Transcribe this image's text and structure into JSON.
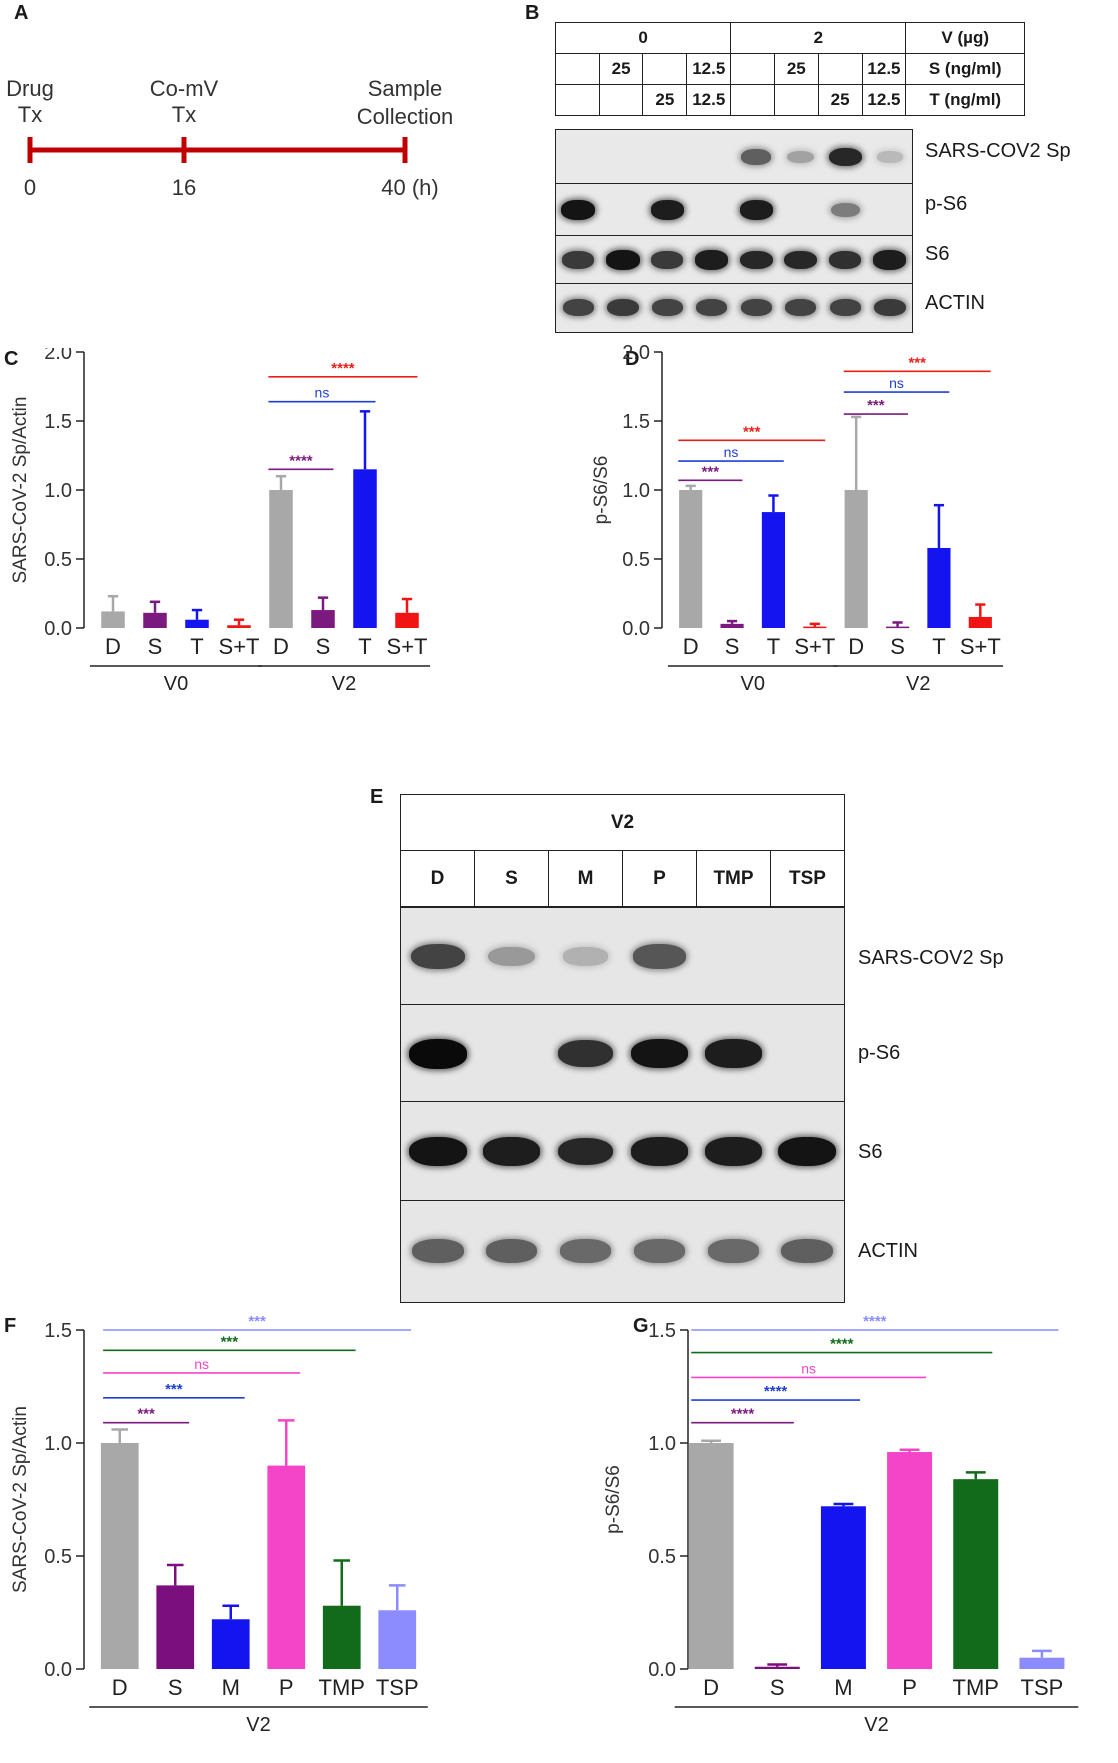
{
  "panels": {
    "A": {
      "letter": "A",
      "label_drug": [
        "Drug",
        "Tx"
      ],
      "label_comv": [
        "Co-mV",
        "Tx"
      ],
      "label_sample": [
        "Sample",
        "Collection"
      ],
      "ticks": [
        "0",
        "16",
        "40 (h)"
      ],
      "color": "#c00000"
    },
    "B": {
      "letter": "B",
      "header": {
        "v_groups": [
          "0",
          "2"
        ],
        "v_label": "V (µg)",
        "s_row": [
          "",
          "25",
          "",
          "12.5",
          "",
          "25",
          "",
          "12.5"
        ],
        "s_label": "S (ng/ml)",
        "t_row": [
          "",
          "",
          "25",
          "12.5",
          "",
          "",
          "25",
          "12.5"
        ],
        "t_label": "T (ng/ml)"
      },
      "rows": [
        "SARS-COV2 Sp",
        "p-S6",
        "S6",
        "ACTIN"
      ],
      "intensity": [
        [
          0,
          0,
          0,
          0,
          0.55,
          0.2,
          0.85,
          0.08
        ],
        [
          0.95,
          0,
          0.9,
          0,
          0.9,
          0,
          0.4,
          0
        ],
        [
          0.75,
          0.95,
          0.75,
          0.9,
          0.85,
          0.85,
          0.8,
          0.9
        ],
        [
          0.7,
          0.75,
          0.7,
          0.7,
          0.7,
          0.7,
          0.7,
          0.75
        ]
      ]
    },
    "E": {
      "letter": "E",
      "group": "V2",
      "lanes": [
        "D",
        "S",
        "M",
        "P",
        "TMP",
        "TSP"
      ],
      "rows": [
        "SARS-COV2 Sp",
        "p-S6",
        "S6",
        "ACTIN"
      ],
      "intensity": [
        [
          0.7,
          0.25,
          0.12,
          0.6,
          0,
          0
        ],
        [
          1,
          0,
          0.8,
          0.95,
          0.9,
          0
        ],
        [
          0.95,
          0.9,
          0.85,
          0.9,
          0.9,
          0.95
        ],
        [
          0.55,
          0.55,
          0.5,
          0.5,
          0.5,
          0.55
        ]
      ]
    }
  },
  "chart_data": [
    {
      "id": "C",
      "letter": "C",
      "type": "bar",
      "ylabel": "SARS-CoV-2 Sp/Actin",
      "ylim": [
        0,
        2.0
      ],
      "yticks": [
        "0.0",
        "0.5",
        "1.0",
        "1.5",
        "2.0"
      ],
      "categories": [
        "D",
        "S",
        "T",
        "S+T",
        "D",
        "S",
        "T",
        "S+T"
      ],
      "groups": [
        {
          "label": "V0",
          "start": 0,
          "end": 3
        },
        {
          "label": "V2",
          "start": 4,
          "end": 7
        }
      ],
      "values": [
        0.12,
        0.11,
        0.06,
        0.02,
        1.0,
        0.13,
        1.15,
        0.11
      ],
      "errors": [
        0.11,
        0.08,
        0.07,
        0.04,
        0.1,
        0.09,
        0.42,
        0.1
      ],
      "colors": [
        "#a8a8a8",
        "#7b1a7e",
        "#1414f0",
        "#f01414",
        "#a8a8a8",
        "#7b1a7e",
        "#1414f0",
        "#f01414"
      ],
      "annotations": [
        {
          "from": 4,
          "to": 5,
          "text": "****",
          "y": 1.15,
          "color": "#7b1a7e"
        },
        {
          "from": 4,
          "to": 6,
          "text": "ns",
          "y": 1.64,
          "color": "#1f3fd6"
        },
        {
          "from": 4,
          "to": 7,
          "text": "****",
          "y": 1.82,
          "color": "#e8201a"
        }
      ]
    },
    {
      "id": "D",
      "letter": "D",
      "type": "bar",
      "ylabel": "p-S6/S6",
      "ylim": [
        0,
        2.0
      ],
      "yticks": [
        "0.0",
        "0.5",
        "1.0",
        "1.5",
        "2.0"
      ],
      "categories": [
        "D",
        "S",
        "T",
        "S+T",
        "D",
        "S",
        "T",
        "S+T"
      ],
      "groups": [
        {
          "label": "V0",
          "start": 0,
          "end": 3
        },
        {
          "label": "V2",
          "start": 4,
          "end": 7
        }
      ],
      "values": [
        1.0,
        0.03,
        0.84,
        0.01,
        1.0,
        0.01,
        0.58,
        0.08
      ],
      "errors": [
        0.03,
        0.02,
        0.12,
        0.02,
        0.53,
        0.03,
        0.31,
        0.09
      ],
      "colors": [
        "#a8a8a8",
        "#7b1a7e",
        "#1414f0",
        "#f01414",
        "#a8a8a8",
        "#7b1a7e",
        "#1414f0",
        "#f01414"
      ],
      "annotations": [
        {
          "from": 0,
          "to": 1,
          "text": "***",
          "y": 1.07,
          "color": "#7b1a7e"
        },
        {
          "from": 0,
          "to": 2,
          "text": "ns",
          "y": 1.21,
          "color": "#1f3fd6"
        },
        {
          "from": 0,
          "to": 3,
          "text": "***",
          "y": 1.36,
          "color": "#e8201a"
        },
        {
          "from": 4,
          "to": 5,
          "text": "***",
          "y": 1.55,
          "color": "#7b1a7e"
        },
        {
          "from": 4,
          "to": 6,
          "text": "ns",
          "y": 1.71,
          "color": "#1f3fd6"
        },
        {
          "from": 4,
          "to": 7,
          "text": "***",
          "y": 1.86,
          "color": "#e8201a"
        }
      ]
    },
    {
      "id": "F",
      "letter": "F",
      "type": "bar",
      "ylabel": "SARS-CoV-2 Sp/Actin",
      "ylim": [
        0,
        1.5
      ],
      "yticks": [
        "0.0",
        "0.5",
        "1.0",
        "1.5"
      ],
      "categories": [
        "D",
        "S",
        "M",
        "P",
        "TMP",
        "TSP"
      ],
      "groups": [
        {
          "label": "V2",
          "start": 0,
          "end": 5
        }
      ],
      "values": [
        1.0,
        0.37,
        0.22,
        0.9,
        0.28,
        0.26
      ],
      "errors": [
        0.06,
        0.09,
        0.06,
        0.2,
        0.2,
        0.11
      ],
      "colors": [
        "#a8a8a8",
        "#7b0f7e",
        "#1414f0",
        "#f445c9",
        "#116b1a",
        "#8c8cff"
      ],
      "annotations": [
        {
          "from": 0,
          "to": 1,
          "text": "***",
          "y": 1.09,
          "color": "#7b1a7e"
        },
        {
          "from": 0,
          "to": 2,
          "text": "***",
          "y": 1.2,
          "color": "#1f3fd6"
        },
        {
          "from": 0,
          "to": 3,
          "text": "ns",
          "y": 1.31,
          "color": "#f445c9"
        },
        {
          "from": 0,
          "to": 4,
          "text": "***",
          "y": 1.41,
          "color": "#116b1a"
        },
        {
          "from": 0,
          "to": 5,
          "text": "***",
          "y": 1.5,
          "color": "#8c8cff"
        }
      ]
    },
    {
      "id": "G",
      "letter": "G",
      "type": "bar",
      "ylabel": "p-S6/S6",
      "ylim": [
        0,
        1.5
      ],
      "yticks": [
        "0.0",
        "0.5",
        "1.0",
        "1.5"
      ],
      "categories": [
        "D",
        "S",
        "M",
        "P",
        "TMP",
        "TSP"
      ],
      "groups": [
        {
          "label": "V2",
          "start": 0,
          "end": 5
        }
      ],
      "values": [
        1.0,
        0.01,
        0.72,
        0.96,
        0.84,
        0.05
      ],
      "errors": [
        0.01,
        0.01,
        0.01,
        0.01,
        0.03,
        0.03
      ],
      "colors": [
        "#a8a8a8",
        "#7b0f7e",
        "#1414f0",
        "#f445c9",
        "#116b1a",
        "#8c8cff"
      ],
      "annotations": [
        {
          "from": 0,
          "to": 1,
          "text": "****",
          "y": 1.09,
          "color": "#7b1a7e"
        },
        {
          "from": 0,
          "to": 2,
          "text": "****",
          "y": 1.19,
          "color": "#1f3fd6"
        },
        {
          "from": 0,
          "to": 3,
          "text": "ns",
          "y": 1.29,
          "color": "#f445c9"
        },
        {
          "from": 0,
          "to": 4,
          "text": "****",
          "y": 1.4,
          "color": "#116b1a"
        },
        {
          "from": 0,
          "to": 5,
          "text": "****",
          "y": 1.5,
          "color": "#8c8cff"
        }
      ]
    }
  ]
}
